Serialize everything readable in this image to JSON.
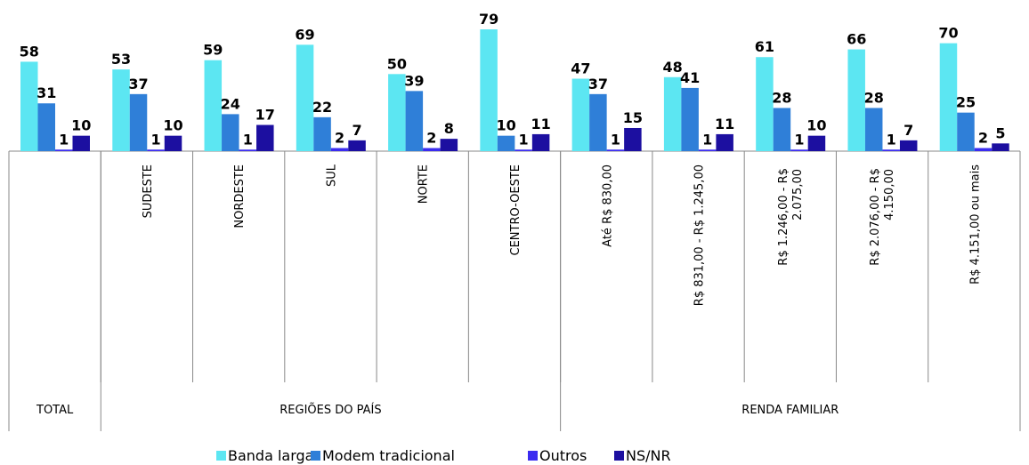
{
  "chart_data": {
    "type": "bar",
    "categories": [
      null,
      "SUDESTE",
      "NORDESTE",
      "SUL",
      "NORTE",
      "CENTRO-OESTE",
      "Até R$ 830,00",
      "R$ 831,00 - R$ 1.245,00",
      "R$ 1.246,00 - R$ 2.075,00",
      "R$ 2.076,00 - R$ 4.150,00",
      "R$ 4.151,00 ou mais"
    ],
    "groups": [
      "TOTAL",
      "REGIÕES DO PAÍS",
      "RENDA FAMILIAR"
    ],
    "series": [
      {
        "name": "Banda larga",
        "color": "#5ce6f2",
        "values": [
          58,
          53,
          59,
          69,
          50,
          79,
          47,
          48,
          61,
          66,
          70
        ]
      },
      {
        "name": "Modem tradicional",
        "color": "#2f7fd8",
        "values": [
          31,
          37,
          24,
          22,
          39,
          10,
          37,
          41,
          28,
          28,
          25
        ]
      },
      {
        "name": "Outros",
        "color": "#3b2cf0",
        "values": [
          1,
          1,
          1,
          2,
          2,
          1,
          1,
          1,
          1,
          1,
          2
        ]
      },
      {
        "name": "NS/NR",
        "color": "#1c0fa0",
        "values": [
          10,
          10,
          17,
          7,
          8,
          11,
          15,
          11,
          10,
          7,
          5
        ]
      }
    ],
    "legend": "bottom"
  }
}
